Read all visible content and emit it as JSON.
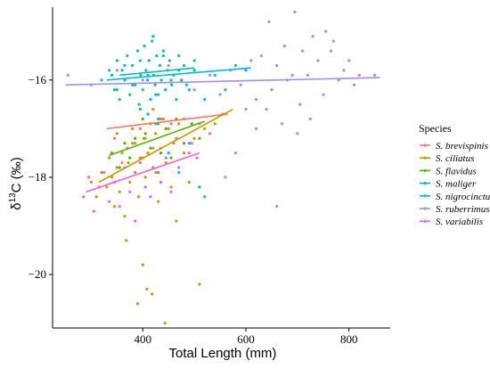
{
  "chart_data": {
    "type": "scatter",
    "title": "",
    "xlabel": "Total Length (mm)",
    "ylabel": "δ13C (‰)",
    "ylabel_parts": {
      "symbol": "δ",
      "superscript": "13",
      "rest": "C (‰)"
    },
    "xlim": [
      225,
      880
    ],
    "ylim": [
      -21.1,
      -14.5
    ],
    "xticks": [
      400,
      600,
      800
    ],
    "yticks": [
      -16,
      -18,
      -20
    ],
    "grid": false,
    "legend": {
      "title": "Species",
      "placement": "right"
    },
    "series": [
      {
        "name": "S. brevispinis",
        "color": "#F8766D",
        "fit": {
          "x": [
            330,
            565
          ],
          "y": [
            -17.0,
            -16.7
          ]
        },
        "points": [
          [
            335,
            -17.6
          ],
          [
            345,
            -17.2
          ],
          [
            360,
            -17.7
          ],
          [
            370,
            -17.4
          ],
          [
            385,
            -17.3
          ],
          [
            395,
            -17.0
          ],
          [
            405,
            -17.2
          ],
          [
            415,
            -16.9
          ],
          [
            425,
            -17.1
          ],
          [
            435,
            -16.8
          ],
          [
            445,
            -17.0
          ],
          [
            455,
            -16.9
          ],
          [
            465,
            -17.2
          ],
          [
            480,
            -16.8
          ],
          [
            495,
            -17.3
          ],
          [
            510,
            -16.9
          ],
          [
            530,
            -17.1
          ],
          [
            555,
            -16.7
          ],
          [
            420,
            -17.4
          ],
          [
            400,
            -17.6
          ]
        ]
      },
      {
        "name": "S. ciliatus",
        "color": "#C49A00",
        "fit": {
          "x": [
            315,
            575
          ],
          "y": [
            -18.1,
            -16.6
          ]
        },
        "points": [
          [
            300,
            -18.1
          ],
          [
            310,
            -18.4
          ],
          [
            320,
            -17.9
          ],
          [
            330,
            -18.2
          ],
          [
            335,
            -17.6
          ],
          [
            340,
            -18.0
          ],
          [
            345,
            -18.6
          ],
          [
            350,
            -17.8
          ],
          [
            355,
            -18.3
          ],
          [
            360,
            -17.5
          ],
          [
            365,
            -18.8
          ],
          [
            368,
            -19.3
          ],
          [
            372,
            -17.7
          ],
          [
            375,
            -18.1
          ],
          [
            380,
            -17.3
          ],
          [
            385,
            -17.9
          ],
          [
            390,
            -20.6
          ],
          [
            392,
            -18.4
          ],
          [
            395,
            -17.6
          ],
          [
            400,
            -19.8
          ],
          [
            402,
            -17.2
          ],
          [
            405,
            -18.0
          ],
          [
            408,
            -20.3
          ],
          [
            410,
            -17.5
          ],
          [
            415,
            -16.9
          ],
          [
            418,
            -20.4
          ],
          [
            420,
            -17.8
          ],
          [
            425,
            -17.1
          ],
          [
            430,
            -18.5
          ],
          [
            435,
            -17.4
          ],
          [
            440,
            -16.8
          ],
          [
            443,
            -21.0
          ],
          [
            445,
            -17.7
          ],
          [
            450,
            -17.0
          ],
          [
            455,
            -18.2
          ],
          [
            460,
            -17.3
          ],
          [
            465,
            -18.9
          ],
          [
            470,
            -16.9
          ],
          [
            480,
            -17.5
          ],
          [
            490,
            -18.1
          ],
          [
            500,
            -17.2
          ],
          [
            510,
            -20.2
          ],
          [
            520,
            -17.0
          ],
          [
            540,
            -16.9
          ],
          [
            560,
            -16.7
          ],
          [
            350,
            -17.1
          ],
          [
            380,
            -17.0
          ],
          [
            420,
            -16.6
          ]
        ]
      },
      {
        "name": "S. flavidus",
        "color": "#53B400",
        "fit": {
          "x": [
            335,
            520
          ],
          "y": [
            -17.55,
            -16.85
          ]
        },
        "points": [
          [
            340,
            -17.5
          ],
          [
            355,
            -17.8
          ],
          [
            365,
            -17.3
          ],
          [
            375,
            -17.6
          ],
          [
            385,
            -17.2
          ],
          [
            395,
            -17.7
          ],
          [
            405,
            -17.1
          ],
          [
            415,
            -17.4
          ],
          [
            425,
            -16.9
          ],
          [
            435,
            -17.5
          ],
          [
            445,
            -17.0
          ],
          [
            455,
            -17.6
          ],
          [
            465,
            -16.8
          ],
          [
            480,
            -17.3
          ],
          [
            495,
            -16.9
          ],
          [
            510,
            -17.2
          ],
          [
            430,
            -17.9
          ],
          [
            400,
            -16.8
          ]
        ]
      },
      {
        "name": "S. maliger",
        "color": "#00C094",
        "fit": {
          "x": [
            355,
            500
          ],
          "y": [
            -15.9,
            -15.75
          ]
        },
        "points": [
          [
            340,
            -15.9
          ],
          [
            345,
            -16.2
          ],
          [
            350,
            -15.6
          ],
          [
            355,
            -16.4
          ],
          [
            360,
            -15.8
          ],
          [
            365,
            -16.0
          ],
          [
            370,
            -15.5
          ],
          [
            375,
            -16.3
          ],
          [
            380,
            -15.7
          ],
          [
            385,
            -16.1
          ],
          [
            390,
            -15.4
          ],
          [
            393,
            -16.5
          ],
          [
            396,
            -15.9
          ],
          [
            400,
            -16.2
          ],
          [
            403,
            -15.3
          ],
          [
            406,
            -15.8
          ],
          [
            409,
            -16.0
          ],
          [
            412,
            -15.6
          ],
          [
            415,
            -16.4
          ],
          [
            418,
            -15.2
          ],
          [
            421,
            -15.9
          ],
          [
            424,
            -16.1
          ],
          [
            427,
            -15.5
          ],
          [
            430,
            -16.3
          ],
          [
            433,
            -15.7
          ],
          [
            436,
            -16.0
          ],
          [
            440,
            -15.4
          ],
          [
            444,
            -16.2
          ],
          [
            448,
            -15.8
          ],
          [
            452,
            -15.6
          ],
          [
            456,
            -16.1
          ],
          [
            460,
            -15.9
          ],
          [
            465,
            -16.4
          ],
          [
            470,
            -15.5
          ],
          [
            475,
            -16.0
          ],
          [
            480,
            -15.7
          ],
          [
            490,
            -16.2
          ],
          [
            500,
            -15.8
          ],
          [
            420,
            -15.1
          ],
          [
            410,
            -16.7
          ],
          [
            430,
            -16.8
          ],
          [
            395,
            -16.6
          ]
        ]
      },
      {
        "name": "S. nigrocinctus",
        "color": "#00B6EB",
        "fit": {
          "x": [
            330,
            610
          ],
          "y": [
            -16.0,
            -15.75
          ]
        },
        "points": [
          [
            320,
            -16.0
          ],
          [
            335,
            -15.8
          ],
          [
            350,
            -16.2
          ],
          [
            365,
            -15.7
          ],
          [
            380,
            -16.1
          ],
          [
            395,
            -15.6
          ],
          [
            410,
            -15.9
          ],
          [
            425,
            -16.3
          ],
          [
            440,
            -15.5
          ],
          [
            455,
            -16.0
          ],
          [
            470,
            -15.8
          ],
          [
            485,
            -16.1
          ],
          [
            500,
            -15.6
          ],
          [
            520,
            -16.4
          ],
          [
            540,
            -15.9
          ],
          [
            560,
            -16.2
          ],
          [
            580,
            -15.7
          ],
          [
            600,
            -15.8
          ],
          [
            450,
            -17.5
          ],
          [
            470,
            -17.9
          ],
          [
            510,
            -18.2
          ],
          [
            520,
            -18.4
          ],
          [
            490,
            -17.3
          ],
          [
            430,
            -16.9
          ]
        ]
      },
      {
        "name": "S. ruberrimus",
        "color": "#A58AFF",
        "fit": {
          "x": [
            250,
            860
          ],
          "y": [
            -16.1,
            -15.95
          ]
        },
        "points": [
          [
            255,
            -15.9
          ],
          [
            300,
            -16.1
          ],
          [
            350,
            -15.8
          ],
          [
            400,
            -16.0
          ],
          [
            450,
            -15.7
          ],
          [
            500,
            -16.2
          ],
          [
            530,
            -15.9
          ],
          [
            550,
            -16.3
          ],
          [
            570,
            -15.8
          ],
          [
            590,
            -16.1
          ],
          [
            610,
            -15.6
          ],
          [
            620,
            -16.4
          ],
          [
            630,
            -15.5
          ],
          [
            640,
            -16.6
          ],
          [
            645,
            -14.8
          ],
          [
            650,
            -16.2
          ],
          [
            660,
            -15.7
          ],
          [
            670,
            -16.9
          ],
          [
            675,
            -15.3
          ],
          [
            680,
            -16.0
          ],
          [
            690,
            -15.9
          ],
          [
            695,
            -14.6
          ],
          [
            700,
            -17.1
          ],
          [
            705,
            -16.5
          ],
          [
            710,
            -15.4
          ],
          [
            720,
            -15.9
          ],
          [
            725,
            -16.8
          ],
          [
            730,
            -15.1
          ],
          [
            740,
            -15.6
          ],
          [
            750,
            -16.3
          ],
          [
            755,
            -15.0
          ],
          [
            765,
            -15.4
          ],
          [
            770,
            -15.2
          ],
          [
            780,
            -16.0
          ],
          [
            790,
            -15.8
          ],
          [
            800,
            -15.6
          ],
          [
            810,
            -16.1
          ],
          [
            820,
            -15.9
          ],
          [
            850,
            -15.9
          ],
          [
            660,
            -18.6
          ],
          [
            600,
            -16.6
          ],
          [
            560,
            -18.0
          ],
          [
            580,
            -17.5
          ],
          [
            620,
            -17.0
          ]
        ]
      },
      {
        "name": "S. variabilis",
        "color": "#FB61D7",
        "fit": {
          "x": [
            290,
            510
          ],
          "y": [
            -18.3,
            -17.5
          ]
        },
        "points": [
          [
            285,
            -18.4
          ],
          [
            295,
            -18.0
          ],
          [
            305,
            -18.7
          ],
          [
            315,
            -18.2
          ],
          [
            325,
            -17.9
          ],
          [
            335,
            -18.5
          ],
          [
            345,
            -18.1
          ],
          [
            355,
            -18.6
          ],
          [
            365,
            -17.8
          ],
          [
            375,
            -18.3
          ],
          [
            385,
            -18.9
          ],
          [
            395,
            -17.7
          ],
          [
            405,
            -18.2
          ],
          [
            415,
            -18.4
          ],
          [
            425,
            -17.9
          ],
          [
            435,
            -18.1
          ],
          [
            445,
            -17.6
          ],
          [
            455,
            -18.3
          ],
          [
            470,
            -17.8
          ],
          [
            490,
            -17.5
          ],
          [
            505,
            -17.6
          ]
        ]
      }
    ]
  }
}
